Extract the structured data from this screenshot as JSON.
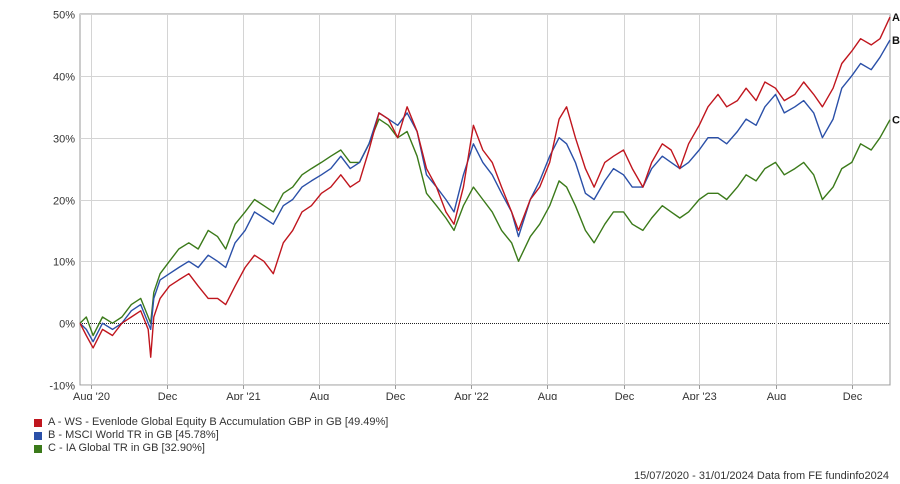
{
  "chart_data": {
    "type": "line",
    "ylim": [
      -10,
      50
    ],
    "y_ticks": [
      -10,
      0,
      10,
      20,
      30,
      40,
      50
    ],
    "y_tick_labels": [
      "-10%",
      "0%",
      "10%",
      "20%",
      "30%",
      "40%",
      "50%"
    ],
    "x_range": [
      "2020-07-15",
      "2024-01-31"
    ],
    "x_ticks": [
      {
        "date": "2020-08-01",
        "label": "Aug '20"
      },
      {
        "date": "2020-12-01",
        "label": "Dec"
      },
      {
        "date": "2021-04-01",
        "label": "Apr '21"
      },
      {
        "date": "2021-08-01",
        "label": "Aug"
      },
      {
        "date": "2021-12-01",
        "label": "Dec"
      },
      {
        "date": "2022-04-01",
        "label": "Apr '22"
      },
      {
        "date": "2022-08-01",
        "label": "Aug"
      },
      {
        "date": "2022-12-01",
        "label": "Dec"
      },
      {
        "date": "2023-04-01",
        "label": "Apr '23"
      },
      {
        "date": "2023-08-01",
        "label": "Aug"
      },
      {
        "date": "2023-12-01",
        "label": "Dec"
      }
    ],
    "grid": true,
    "legend_position": "bottom-left",
    "series": [
      {
        "key": "A",
        "name": "A - WS - Evenlode Global Equity B Accumulation GBP in GB [49.49%]",
        "color": "#c0161e",
        "points": [
          [
            "2020-07-15",
            0
          ],
          [
            "2020-07-25",
            -2
          ],
          [
            "2020-08-05",
            -4
          ],
          [
            "2020-08-20",
            -1
          ],
          [
            "2020-09-05",
            -2
          ],
          [
            "2020-09-20",
            0
          ],
          [
            "2020-10-05",
            1
          ],
          [
            "2020-10-20",
            2
          ],
          [
            "2020-11-01",
            -1
          ],
          [
            "2020-11-05",
            -5.5
          ],
          [
            "2020-11-10",
            1
          ],
          [
            "2020-11-20",
            4
          ],
          [
            "2020-12-05",
            6
          ],
          [
            "2020-12-20",
            7
          ],
          [
            "2021-01-05",
            8
          ],
          [
            "2021-01-20",
            6
          ],
          [
            "2021-02-05",
            4
          ],
          [
            "2021-02-20",
            4
          ],
          [
            "2021-03-05",
            3
          ],
          [
            "2021-03-20",
            6
          ],
          [
            "2021-04-05",
            9
          ],
          [
            "2021-04-20",
            11
          ],
          [
            "2021-05-05",
            10
          ],
          [
            "2021-05-20",
            8
          ],
          [
            "2021-06-05",
            13
          ],
          [
            "2021-06-20",
            15
          ],
          [
            "2021-07-05",
            18
          ],
          [
            "2021-07-20",
            19
          ],
          [
            "2021-08-05",
            21
          ],
          [
            "2021-08-20",
            22
          ],
          [
            "2021-09-05",
            24
          ],
          [
            "2021-09-20",
            22
          ],
          [
            "2021-10-05",
            23
          ],
          [
            "2021-10-20",
            28
          ],
          [
            "2021-11-05",
            34
          ],
          [
            "2021-11-20",
            33
          ],
          [
            "2021-12-05",
            30
          ],
          [
            "2021-12-20",
            35
          ],
          [
            "2022-01-05",
            31
          ],
          [
            "2022-01-20",
            25
          ],
          [
            "2022-02-05",
            22
          ],
          [
            "2022-02-20",
            18
          ],
          [
            "2022-03-05",
            16
          ],
          [
            "2022-03-20",
            22
          ],
          [
            "2022-04-05",
            32
          ],
          [
            "2022-04-20",
            28
          ],
          [
            "2022-05-05",
            26
          ],
          [
            "2022-05-20",
            22
          ],
          [
            "2022-06-05",
            18
          ],
          [
            "2022-06-16",
            15
          ],
          [
            "2022-07-05",
            20
          ],
          [
            "2022-07-20",
            22
          ],
          [
            "2022-08-05",
            26
          ],
          [
            "2022-08-20",
            33
          ],
          [
            "2022-09-01",
            35
          ],
          [
            "2022-09-15",
            30
          ],
          [
            "2022-10-01",
            25
          ],
          [
            "2022-10-15",
            22
          ],
          [
            "2022-11-01",
            26
          ],
          [
            "2022-11-15",
            27
          ],
          [
            "2022-12-01",
            28
          ],
          [
            "2022-12-15",
            25
          ],
          [
            "2023-01-01",
            22
          ],
          [
            "2023-01-15",
            26
          ],
          [
            "2023-02-01",
            29
          ],
          [
            "2023-02-15",
            28
          ],
          [
            "2023-03-01",
            25
          ],
          [
            "2023-03-15",
            29
          ],
          [
            "2023-04-01",
            32
          ],
          [
            "2023-04-15",
            35
          ],
          [
            "2023-05-01",
            37
          ],
          [
            "2023-05-15",
            35
          ],
          [
            "2023-06-01",
            36
          ],
          [
            "2023-06-15",
            38
          ],
          [
            "2023-07-01",
            36
          ],
          [
            "2023-07-15",
            39
          ],
          [
            "2023-08-01",
            38
          ],
          [
            "2023-08-15",
            36
          ],
          [
            "2023-09-01",
            37
          ],
          [
            "2023-09-15",
            39
          ],
          [
            "2023-10-01",
            37
          ],
          [
            "2023-10-15",
            35
          ],
          [
            "2023-11-01",
            38
          ],
          [
            "2023-11-15",
            42
          ],
          [
            "2023-12-01",
            44
          ],
          [
            "2023-12-15",
            46
          ],
          [
            "2024-01-01",
            45
          ],
          [
            "2024-01-15",
            46
          ],
          [
            "2024-01-31",
            49.5
          ]
        ]
      },
      {
        "key": "B",
        "name": "B - MSCI World TR in GB [45.78%]",
        "color": "#2b50a8",
        "points": [
          [
            "2020-07-15",
            0
          ],
          [
            "2020-07-25",
            -1
          ],
          [
            "2020-08-05",
            -3
          ],
          [
            "2020-08-20",
            0
          ],
          [
            "2020-09-05",
            -1
          ],
          [
            "2020-09-20",
            0
          ],
          [
            "2020-10-05",
            2
          ],
          [
            "2020-10-20",
            3
          ],
          [
            "2020-11-01",
            0
          ],
          [
            "2020-11-05",
            -1
          ],
          [
            "2020-11-10",
            4
          ],
          [
            "2020-11-20",
            7
          ],
          [
            "2020-12-05",
            8
          ],
          [
            "2020-12-20",
            9
          ],
          [
            "2021-01-05",
            10
          ],
          [
            "2021-01-20",
            9
          ],
          [
            "2021-02-05",
            11
          ],
          [
            "2021-02-20",
            10
          ],
          [
            "2021-03-05",
            9
          ],
          [
            "2021-03-20",
            13
          ],
          [
            "2021-04-05",
            15
          ],
          [
            "2021-04-20",
            18
          ],
          [
            "2021-05-05",
            17
          ],
          [
            "2021-05-20",
            16
          ],
          [
            "2021-06-05",
            19
          ],
          [
            "2021-06-20",
            20
          ],
          [
            "2021-07-05",
            22
          ],
          [
            "2021-07-20",
            23
          ],
          [
            "2021-08-05",
            24
          ],
          [
            "2021-08-20",
            25
          ],
          [
            "2021-09-05",
            27
          ],
          [
            "2021-09-20",
            25
          ],
          [
            "2021-10-05",
            26
          ],
          [
            "2021-10-20",
            29
          ],
          [
            "2021-11-05",
            34
          ],
          [
            "2021-11-20",
            33
          ],
          [
            "2021-12-05",
            32
          ],
          [
            "2021-12-20",
            34
          ],
          [
            "2022-01-05",
            31
          ],
          [
            "2022-01-20",
            24
          ],
          [
            "2022-02-05",
            22
          ],
          [
            "2022-02-20",
            20
          ],
          [
            "2022-03-05",
            18
          ],
          [
            "2022-03-20",
            24
          ],
          [
            "2022-04-05",
            29
          ],
          [
            "2022-04-20",
            26
          ],
          [
            "2022-05-05",
            24
          ],
          [
            "2022-05-20",
            21
          ],
          [
            "2022-06-05",
            18
          ],
          [
            "2022-06-16",
            14
          ],
          [
            "2022-07-05",
            20
          ],
          [
            "2022-07-20",
            23
          ],
          [
            "2022-08-05",
            27
          ],
          [
            "2022-08-20",
            30
          ],
          [
            "2022-09-01",
            29
          ],
          [
            "2022-09-15",
            26
          ],
          [
            "2022-10-01",
            21
          ],
          [
            "2022-10-15",
            20
          ],
          [
            "2022-11-01",
            23
          ],
          [
            "2022-11-15",
            25
          ],
          [
            "2022-12-01",
            24
          ],
          [
            "2022-12-15",
            22
          ],
          [
            "2023-01-01",
            22
          ],
          [
            "2023-01-15",
            25
          ],
          [
            "2023-02-01",
            27
          ],
          [
            "2023-02-15",
            26
          ],
          [
            "2023-03-01",
            25
          ],
          [
            "2023-03-15",
            26
          ],
          [
            "2023-04-01",
            28
          ],
          [
            "2023-04-15",
            30
          ],
          [
            "2023-05-01",
            30
          ],
          [
            "2023-05-15",
            29
          ],
          [
            "2023-06-01",
            31
          ],
          [
            "2023-06-15",
            33
          ],
          [
            "2023-07-01",
            32
          ],
          [
            "2023-07-15",
            35
          ],
          [
            "2023-08-01",
            37
          ],
          [
            "2023-08-15",
            34
          ],
          [
            "2023-09-01",
            35
          ],
          [
            "2023-09-15",
            36
          ],
          [
            "2023-10-01",
            34
          ],
          [
            "2023-10-15",
            30
          ],
          [
            "2023-11-01",
            33
          ],
          [
            "2023-11-15",
            38
          ],
          [
            "2023-12-01",
            40
          ],
          [
            "2023-12-15",
            42
          ],
          [
            "2024-01-01",
            41
          ],
          [
            "2024-01-15",
            43
          ],
          [
            "2024-01-31",
            45.8
          ]
        ]
      },
      {
        "key": "C",
        "name": "C - IA Global TR in GB [32.90%]",
        "color": "#3b7a1a",
        "points": [
          [
            "2020-07-15",
            0
          ],
          [
            "2020-07-25",
            1
          ],
          [
            "2020-08-05",
            -2
          ],
          [
            "2020-08-20",
            1
          ],
          [
            "2020-09-05",
            0
          ],
          [
            "2020-09-20",
            1
          ],
          [
            "2020-10-05",
            3
          ],
          [
            "2020-10-20",
            4
          ],
          [
            "2020-11-01",
            1
          ],
          [
            "2020-11-05",
            0
          ],
          [
            "2020-11-10",
            5
          ],
          [
            "2020-11-20",
            8
          ],
          [
            "2020-12-05",
            10
          ],
          [
            "2020-12-20",
            12
          ],
          [
            "2021-01-05",
            13
          ],
          [
            "2021-01-20",
            12
          ],
          [
            "2021-02-05",
            15
          ],
          [
            "2021-02-20",
            14
          ],
          [
            "2021-03-05",
            12
          ],
          [
            "2021-03-20",
            16
          ],
          [
            "2021-04-05",
            18
          ],
          [
            "2021-04-20",
            20
          ],
          [
            "2021-05-05",
            19
          ],
          [
            "2021-05-20",
            18
          ],
          [
            "2021-06-05",
            21
          ],
          [
            "2021-06-20",
            22
          ],
          [
            "2021-07-05",
            24
          ],
          [
            "2021-07-20",
            25
          ],
          [
            "2021-08-05",
            26
          ],
          [
            "2021-08-20",
            27
          ],
          [
            "2021-09-05",
            28
          ],
          [
            "2021-09-20",
            26
          ],
          [
            "2021-10-05",
            26
          ],
          [
            "2021-10-20",
            29
          ],
          [
            "2021-11-05",
            33
          ],
          [
            "2021-11-20",
            32
          ],
          [
            "2021-12-05",
            30
          ],
          [
            "2021-12-20",
            31
          ],
          [
            "2022-01-05",
            27
          ],
          [
            "2022-01-20",
            21
          ],
          [
            "2022-02-05",
            19
          ],
          [
            "2022-02-20",
            17
          ],
          [
            "2022-03-05",
            15
          ],
          [
            "2022-03-20",
            19
          ],
          [
            "2022-04-05",
            22
          ],
          [
            "2022-04-20",
            20
          ],
          [
            "2022-05-05",
            18
          ],
          [
            "2022-05-20",
            15
          ],
          [
            "2022-06-05",
            13
          ],
          [
            "2022-06-16",
            10
          ],
          [
            "2022-07-05",
            14
          ],
          [
            "2022-07-20",
            16
          ],
          [
            "2022-08-05",
            19
          ],
          [
            "2022-08-20",
            23
          ],
          [
            "2022-09-01",
            22
          ],
          [
            "2022-09-15",
            19
          ],
          [
            "2022-10-01",
            15
          ],
          [
            "2022-10-15",
            13
          ],
          [
            "2022-11-01",
            16
          ],
          [
            "2022-11-15",
            18
          ],
          [
            "2022-12-01",
            18
          ],
          [
            "2022-12-15",
            16
          ],
          [
            "2023-01-01",
            15
          ],
          [
            "2023-01-15",
            17
          ],
          [
            "2023-02-01",
            19
          ],
          [
            "2023-02-15",
            18
          ],
          [
            "2023-03-01",
            17
          ],
          [
            "2023-03-15",
            18
          ],
          [
            "2023-04-01",
            20
          ],
          [
            "2023-04-15",
            21
          ],
          [
            "2023-05-01",
            21
          ],
          [
            "2023-05-15",
            20
          ],
          [
            "2023-06-01",
            22
          ],
          [
            "2023-06-15",
            24
          ],
          [
            "2023-07-01",
            23
          ],
          [
            "2023-07-15",
            25
          ],
          [
            "2023-08-01",
            26
          ],
          [
            "2023-08-15",
            24
          ],
          [
            "2023-09-01",
            25
          ],
          [
            "2023-09-15",
            26
          ],
          [
            "2023-10-01",
            24
          ],
          [
            "2023-10-15",
            20
          ],
          [
            "2023-11-01",
            22
          ],
          [
            "2023-11-15",
            25
          ],
          [
            "2023-12-01",
            26
          ],
          [
            "2023-12-15",
            29
          ],
          [
            "2024-01-01",
            28
          ],
          [
            "2024-01-15",
            30
          ],
          [
            "2024-01-31",
            32.9
          ]
        ]
      }
    ]
  },
  "footer": {
    "text": "15/07/2020 - 31/01/2024 Data from FE fundinfo2024"
  }
}
